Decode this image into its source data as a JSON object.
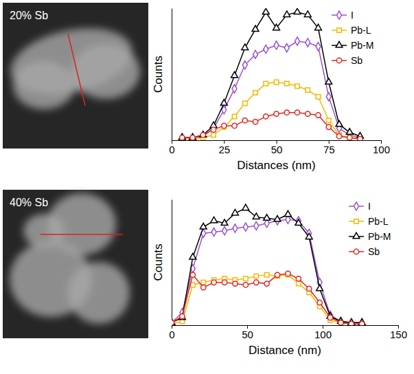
{
  "chart_data": [
    {
      "type": "line",
      "title": "20% Sb",
      "x_label": "Distances (nm)",
      "y_label": "Counts",
      "x": [
        5,
        10,
        15,
        20,
        25,
        30,
        35,
        40,
        45,
        50,
        55,
        60,
        65,
        70,
        75,
        80,
        85,
        90
      ],
      "xlim": [
        0,
        100
      ],
      "xticks": [
        0,
        25,
        50,
        75,
        100
      ],
      "ylim": [
        0,
        100
      ],
      "tick_labels": "x",
      "legend": "top-right",
      "series": [
        {
          "name": "I",
          "color": "#9b4fd0",
          "marker": "diamond",
          "line_style": "solid",
          "values": [
            2,
            2,
            3,
            9,
            23,
            39,
            57,
            65,
            69,
            72,
            70,
            75,
            74,
            71,
            33,
            9,
            4,
            2
          ]
        },
        {
          "name": "Pb-L",
          "color": "#f5b800",
          "marker": "square",
          "line_style": "solid",
          "values": [
            1,
            1,
            2,
            4,
            10,
            18,
            28,
            36,
            43,
            44,
            43,
            41,
            38,
            33,
            15,
            4,
            2,
            1
          ]
        },
        {
          "name": "Pb-M",
          "color": "#000000",
          "marker": "triangle",
          "line_style": "solid",
          "values": [
            2,
            2,
            4,
            11,
            28,
            49,
            70,
            84,
            97,
            85,
            95,
            97,
            95,
            85,
            44,
            12,
            6,
            3
          ]
        },
        {
          "name": "Sb",
          "color": "#e8231f",
          "marker": "circle",
          "line_style": "solid",
          "values": [
            2,
            2,
            4,
            8,
            11,
            11,
            15,
            14,
            18,
            20,
            21,
            21,
            20,
            19,
            10,
            3,
            2,
            1
          ]
        }
      ]
    },
    {
      "type": "line",
      "title": "40% Sb",
      "x_label": "Distance (nm)",
      "y_label": "Counts",
      "x": [
        0,
        7,
        14,
        21,
        28,
        35,
        42,
        49,
        56,
        63,
        70,
        77,
        84,
        91,
        98,
        105,
        112,
        119,
        126
      ],
      "xlim": [
        0,
        150
      ],
      "xticks": [
        0,
        50,
        100,
        150
      ],
      "ylim": [
        0,
        100
      ],
      "tick_labels": "x",
      "legend": "top-right",
      "series": [
        {
          "name": "I",
          "color": "#9b4fd0",
          "marker": "diamond",
          "line_style": "solid",
          "values": [
            2,
            10,
            45,
            73,
            74,
            75,
            77,
            78,
            79,
            81,
            83,
            84,
            83,
            73,
            34,
            8,
            3,
            2,
            2
          ]
        },
        {
          "name": "Pb-L",
          "color": "#f5b800",
          "marker": "square",
          "line_style": "solid",
          "values": [
            1,
            3,
            32,
            34,
            36,
            37,
            36,
            37,
            39,
            40,
            39,
            40,
            33,
            26,
            15,
            4,
            2,
            1,
            1
          ]
        },
        {
          "name": "Pb-M",
          "color": "#000000",
          "marker": "triangle",
          "line_style": "solid",
          "values": [
            2,
            6,
            54,
            78,
            83,
            81,
            89,
            93,
            86,
            85,
            84,
            88,
            81,
            70,
            29,
            7,
            3,
            2,
            2
          ]
        },
        {
          "name": "Sb",
          "color": "#e8231f",
          "marker": "circle",
          "line_style": "solid",
          "values": [
            2,
            7,
            40,
            30,
            34,
            34,
            33,
            32,
            34,
            33,
            40,
            41,
            37,
            29,
            18,
            6,
            2,
            1,
            1
          ]
        }
      ]
    }
  ]
}
